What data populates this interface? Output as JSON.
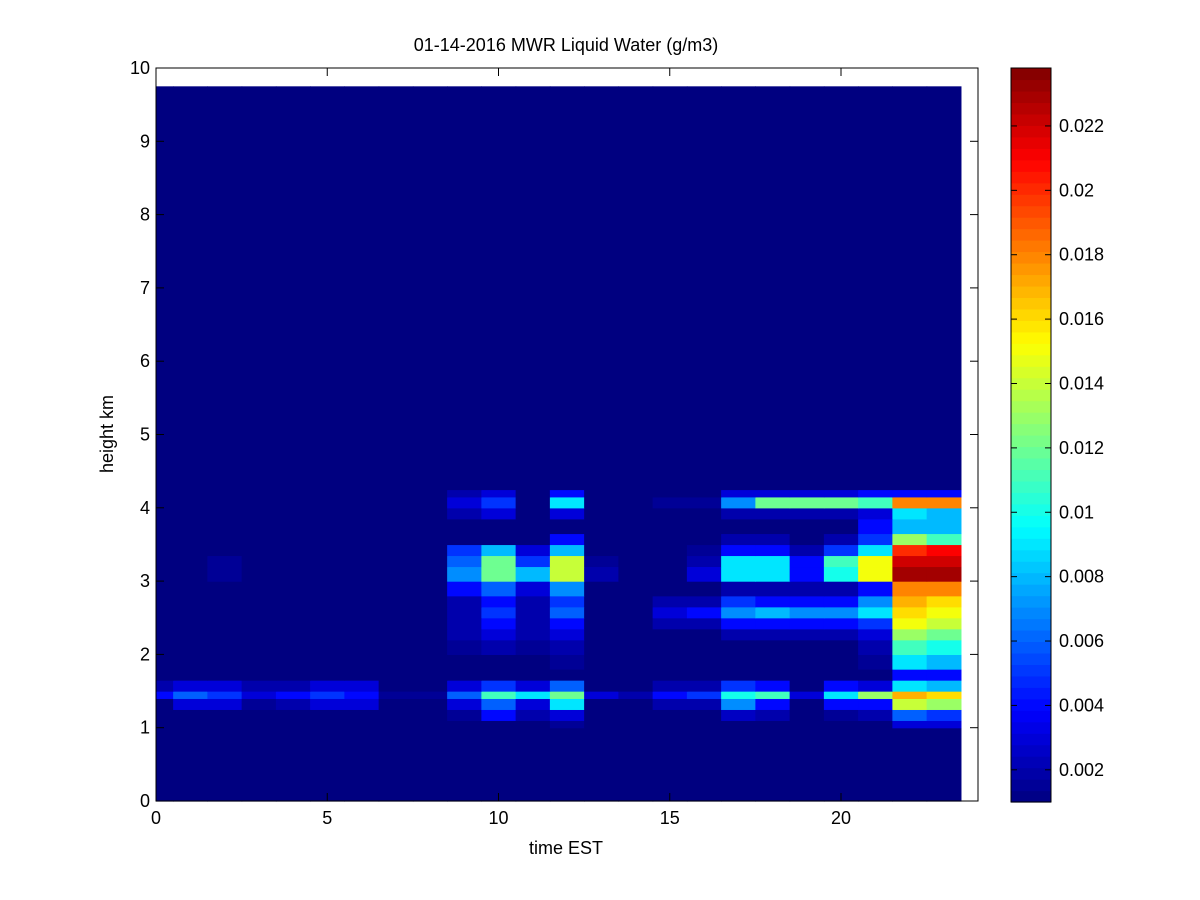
{
  "chart_data": {
    "type": "heatmap",
    "title": "01-14-2016 MWR Liquid Water (g/m3)",
    "xlabel": "time EST",
    "ylabel": "height km",
    "xlim": [
      0,
      24
    ],
    "ylim": [
      0,
      10
    ],
    "x_ticks": [
      "0",
      "5",
      "10",
      "15",
      "20"
    ],
    "y_ticks": [
      "0",
      "1",
      "2",
      "3",
      "4",
      "5",
      "6",
      "7",
      "8",
      "9",
      "10"
    ],
    "colorbar": {
      "range": [
        0.001,
        0.0238
      ],
      "ticks": [
        "0.002",
        "0.004",
        "0.006",
        "0.008",
        "0.01",
        "0.012",
        "0.014",
        "0.016",
        "0.018",
        "0.02",
        "0.022"
      ],
      "colormap": "jet"
    },
    "data_extent": {
      "time_end": 23.5,
      "height_top": 9.75
    },
    "time_cells": [
      0,
      0.5,
      1.5,
      2.5,
      3.5,
      4.5,
      5.5,
      6.5,
      7.5,
      8.5,
      9.5,
      10.5,
      11.5,
      12.5,
      13.5,
      14.5,
      15.5,
      16.5,
      17.5,
      18.5,
      19.5,
      20.5,
      21.5,
      22.5,
      23.5
    ],
    "height_cells": [
      0,
      1.0,
      1.1,
      1.25,
      1.4,
      1.5,
      1.65,
      1.8,
      2.0,
      2.2,
      2.35,
      2.5,
      2.65,
      2.8,
      3.0,
      3.2,
      3.35,
      3.5,
      3.65,
      3.85,
      4.0,
      4.15,
      4.25,
      9.75
    ],
    "values": [
      [
        0.001,
        0.001,
        0.001,
        0.001,
        0.001,
        0.001,
        0.001,
        0.001,
        0.001,
        0.001,
        0.001,
        0.001,
        0.001,
        0.001,
        0.001,
        0.001,
        0.001,
        0.001,
        0.001,
        0.001,
        0.001,
        0.001,
        0.001,
        0.001
      ],
      [
        0.001,
        0.001,
        0.001,
        0.001,
        0.001,
        0.001,
        0.001,
        0.001,
        0.001,
        0.001,
        0.001,
        0.001,
        0.0015,
        0.001,
        0.001,
        0.001,
        0.001,
        0.001,
        0.001,
        0.001,
        0.001,
        0.001,
        0.003,
        0.003
      ],
      [
        0.001,
        0.001,
        0.001,
        0.001,
        0.001,
        0.001,
        0.001,
        0.001,
        0.001,
        0.0015,
        0.004,
        0.002,
        0.003,
        0.001,
        0.001,
        0.001,
        0.001,
        0.0025,
        0.002,
        0.001,
        0.0015,
        0.002,
        0.006,
        0.005
      ],
      [
        0.001,
        0.003,
        0.003,
        0.0015,
        0.002,
        0.003,
        0.003,
        0.001,
        0.001,
        0.003,
        0.006,
        0.003,
        0.009,
        0.001,
        0.001,
        0.002,
        0.002,
        0.007,
        0.004,
        0.001,
        0.004,
        0.004,
        0.014,
        0.013
      ],
      [
        0.004,
        0.006,
        0.005,
        0.003,
        0.004,
        0.005,
        0.004,
        0.0015,
        0.0015,
        0.006,
        0.011,
        0.009,
        0.012,
        0.003,
        0.002,
        0.004,
        0.005,
        0.01,
        0.011,
        0.003,
        0.009,
        0.013,
        0.017,
        0.016
      ],
      [
        0.002,
        0.003,
        0.003,
        0.002,
        0.002,
        0.003,
        0.003,
        0.001,
        0.001,
        0.003,
        0.005,
        0.003,
        0.006,
        0.001,
        0.001,
        0.002,
        0.002,
        0.005,
        0.004,
        0.001,
        0.004,
        0.003,
        0.009,
        0.008
      ],
      [
        0.001,
        0.001,
        0.001,
        0.001,
        0.001,
        0.001,
        0.001,
        0.001,
        0.001,
        0.001,
        0.001,
        0.001,
        0.001,
        0.001,
        0.001,
        0.001,
        0.001,
        0.001,
        0.001,
        0.001,
        0.001,
        0.001,
        0.004,
        0.004
      ],
      [
        0.001,
        0.001,
        0.001,
        0.001,
        0.001,
        0.001,
        0.001,
        0.001,
        0.001,
        0.001,
        0.001,
        0.001,
        0.0015,
        0.001,
        0.001,
        0.001,
        0.001,
        0.001,
        0.001,
        0.001,
        0.001,
        0.0015,
        0.009,
        0.008
      ],
      [
        0.001,
        0.001,
        0.001,
        0.001,
        0.001,
        0.001,
        0.001,
        0.001,
        0.001,
        0.0015,
        0.002,
        0.0015,
        0.002,
        0.001,
        0.001,
        0.001,
        0.001,
        0.001,
        0.001,
        0.001,
        0.001,
        0.002,
        0.011,
        0.01
      ],
      [
        0.001,
        0.001,
        0.001,
        0.001,
        0.001,
        0.001,
        0.001,
        0.001,
        0.001,
        0.002,
        0.003,
        0.002,
        0.003,
        0.001,
        0.001,
        0.001,
        0.001,
        0.002,
        0.002,
        0.002,
        0.002,
        0.003,
        0.013,
        0.012
      ],
      [
        0.001,
        0.001,
        0.001,
        0.001,
        0.001,
        0.001,
        0.001,
        0.001,
        0.001,
        0.002,
        0.004,
        0.002,
        0.004,
        0.001,
        0.001,
        0.002,
        0.002,
        0.004,
        0.004,
        0.004,
        0.004,
        0.005,
        0.015,
        0.014
      ],
      [
        0.001,
        0.001,
        0.001,
        0.001,
        0.001,
        0.001,
        0.001,
        0.001,
        0.001,
        0.002,
        0.005,
        0.002,
        0.006,
        0.001,
        0.001,
        0.003,
        0.004,
        0.007,
        0.008,
        0.007,
        0.007,
        0.009,
        0.016,
        0.015
      ],
      [
        0.001,
        0.001,
        0.001,
        0.001,
        0.001,
        0.001,
        0.001,
        0.001,
        0.001,
        0.002,
        0.004,
        0.002,
        0.005,
        0.001,
        0.001,
        0.002,
        0.002,
        0.005,
        0.004,
        0.004,
        0.004,
        0.007,
        0.017,
        0.016
      ],
      [
        0.001,
        0.001,
        0.001,
        0.001,
        0.001,
        0.001,
        0.001,
        0.001,
        0.001,
        0.004,
        0.006,
        0.003,
        0.007,
        0.001,
        0.001,
        0.001,
        0.001,
        0.002,
        0.002,
        0.002,
        0.002,
        0.004,
        0.018,
        0.018
      ],
      [
        0.001,
        0.001,
        0.0015,
        0.001,
        0.001,
        0.001,
        0.001,
        0.001,
        0.001,
        0.007,
        0.012,
        0.008,
        0.014,
        0.002,
        0.001,
        0.001,
        0.003,
        0.009,
        0.009,
        0.004,
        0.01,
        0.015,
        0.023,
        0.023
      ],
      [
        0.001,
        0.001,
        0.0015,
        0.001,
        0.001,
        0.001,
        0.001,
        0.001,
        0.001,
        0.006,
        0.012,
        0.005,
        0.014,
        0.0015,
        0.001,
        0.001,
        0.002,
        0.009,
        0.009,
        0.004,
        0.011,
        0.015,
        0.022,
        0.022
      ],
      [
        0.001,
        0.001,
        0.001,
        0.001,
        0.001,
        0.001,
        0.001,
        0.001,
        0.001,
        0.005,
        0.008,
        0.003,
        0.008,
        0.001,
        0.001,
        0.001,
        0.0015,
        0.004,
        0.004,
        0.002,
        0.005,
        0.009,
        0.02,
        0.021
      ],
      [
        0.001,
        0.001,
        0.001,
        0.001,
        0.001,
        0.001,
        0.001,
        0.001,
        0.001,
        0.001,
        0.001,
        0.001,
        0.004,
        0.001,
        0.001,
        0.001,
        0.001,
        0.002,
        0.002,
        0.001,
        0.002,
        0.005,
        0.013,
        0.011
      ],
      [
        0.001,
        0.001,
        0.001,
        0.001,
        0.001,
        0.001,
        0.001,
        0.001,
        0.001,
        0.001,
        0.001,
        0.001,
        0.001,
        0.001,
        0.001,
        0.001,
        0.001,
        0.001,
        0.001,
        0.001,
        0.001,
        0.004,
        0.008,
        0.008
      ],
      [
        0.001,
        0.001,
        0.001,
        0.001,
        0.001,
        0.001,
        0.001,
        0.001,
        0.001,
        0.002,
        0.003,
        0.001,
        0.003,
        0.001,
        0.001,
        0.001,
        0.001,
        0.002,
        0.002,
        0.002,
        0.002,
        0.003,
        0.009,
        0.008
      ],
      [
        0.001,
        0.001,
        0.001,
        0.001,
        0.001,
        0.001,
        0.001,
        0.001,
        0.001,
        0.003,
        0.005,
        0.001,
        0.009,
        0.001,
        0.001,
        0.0015,
        0.0015,
        0.007,
        0.012,
        0.012,
        0.012,
        0.011,
        0.018,
        0.018
      ],
      [
        0.001,
        0.001,
        0.001,
        0.001,
        0.001,
        0.001,
        0.001,
        0.001,
        0.001,
        0.002,
        0.003,
        0.001,
        0.004,
        0.001,
        0.001,
        0.001,
        0.001,
        0.003,
        0.003,
        0.003,
        0.003,
        0.004,
        0.004,
        0.004
      ],
      [
        0.001,
        0.001,
        0.001,
        0.001,
        0.001,
        0.001,
        0.001,
        0.001,
        0.001,
        0.001,
        0.001,
        0.001,
        0.001,
        0.001,
        0.001,
        0.001,
        0.001,
        0.001,
        0.001,
        0.001,
        0.001,
        0.001,
        0.001,
        0.001
      ]
    ]
  }
}
